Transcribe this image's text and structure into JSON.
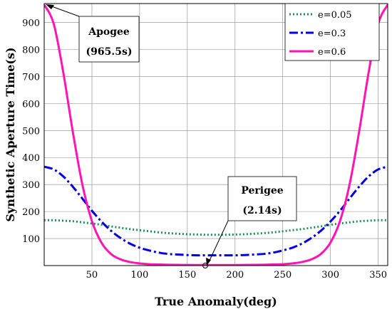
{
  "chart_data": {
    "type": "line",
    "xlabel": "True Anomaly(deg)",
    "ylabel": "Synthetic Aperture Time(s)",
    "xlim": [
      0,
      360
    ],
    "ylim": [
      0,
      970
    ],
    "xticks": [
      50,
      100,
      150,
      200,
      250,
      300,
      350
    ],
    "yticks": [
      100,
      200,
      300,
      400,
      500,
      600,
      700,
      800,
      900
    ],
    "grid": true,
    "legend": "top-right",
    "x": [
      0,
      10,
      20,
      30,
      40,
      50,
      60,
      70,
      80,
      90,
      100,
      110,
      120,
      130,
      140,
      150,
      160,
      170,
      180,
      190,
      200,
      210,
      220,
      230,
      240,
      250,
      260,
      270,
      280,
      290,
      300,
      310,
      320,
      330,
      340,
      350,
      360
    ],
    "series": [
      {
        "name": "e=0.05",
        "color": "#1e8c5a",
        "dash": "dotted",
        "values": [
          168,
          168,
          166,
          164,
          160,
          156,
          151,
          145,
          140,
          135,
          131,
          127,
          123,
          120,
          118,
          116,
          115,
          114,
          114,
          114,
          115,
          116,
          118,
          120,
          123,
          127,
          131,
          135,
          140,
          145,
          151,
          156,
          160,
          164,
          166,
          168,
          168
        ]
      },
      {
        "name": "e=0.3",
        "color": "#0000e6",
        "dash": "dashdot",
        "values": [
          366,
          356,
          330,
          292,
          248,
          203,
          163,
          129,
          102,
          81,
          66,
          56,
          48,
          43,
          41,
          39,
          38,
          38,
          38,
          38,
          38,
          39,
          41,
          43,
          48,
          56,
          66,
          81,
          102,
          129,
          163,
          203,
          248,
          292,
          330,
          356,
          366
        ]
      },
      {
        "name": "e=0.6",
        "color": "#ff14b4",
        "dash": "solid",
        "values": [
          966,
          895,
          715,
          495,
          300,
          165,
          85,
          43,
          23,
          13,
          8,
          5,
          4,
          3,
          2.5,
          2.2,
          2.14,
          2.14,
          2.14,
          2.14,
          2.14,
          2.2,
          2.5,
          3,
          4,
          5,
          8,
          13,
          23,
          43,
          85,
          165,
          300,
          495,
          715,
          895,
          966
        ]
      }
    ],
    "annotations": [
      {
        "line1": "Apogee",
        "line2": "(965.5s)"
      },
      {
        "line1": "Perigee",
        "line2": "(2.14s)"
      }
    ]
  }
}
